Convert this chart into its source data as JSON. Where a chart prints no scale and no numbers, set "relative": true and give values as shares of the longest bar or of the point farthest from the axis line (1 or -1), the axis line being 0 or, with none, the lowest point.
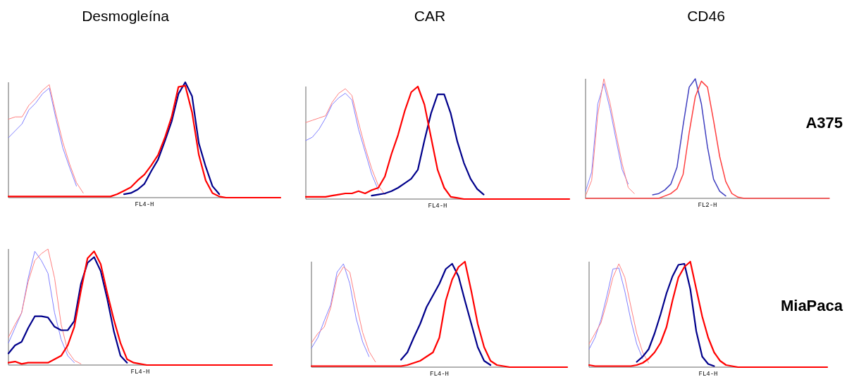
{
  "chart_data": [
    {
      "type": "line",
      "title": "Desmogleína",
      "xlabel": "FL4-H",
      "relative": true,
      "categories": [
        null,
        null,
        null,
        null,
        null,
        null,
        null,
        null,
        null,
        null,
        null,
        null,
        null,
        null,
        null,
        null,
        null,
        null,
        null,
        null,
        null,
        null,
        null,
        null,
        null,
        null,
        null,
        null,
        null,
        null,
        null,
        null,
        null,
        null,
        null,
        null,
        null,
        null,
        null,
        null,
        null
      ],
      "series": [
        {
          "color": "#8080ff",
          "values": [
            0.52,
            0.58,
            0.64,
            0.76,
            0.82,
            0.9,
            0.95,
            0.68,
            0.43,
            0.26,
            0.1,
            null,
            null,
            null,
            null,
            null,
            null,
            null,
            null,
            null,
            null,
            null,
            null,
            null,
            null,
            null,
            null,
            null,
            null,
            null,
            null,
            null,
            null,
            null,
            null,
            null,
            null,
            null,
            null,
            null,
            null
          ]
        },
        {
          "color": "#ff8080",
          "values": [
            0.68,
            0.7,
            0.7,
            0.8,
            0.86,
            0.93,
            0.98,
            0.72,
            0.48,
            0.29,
            0.13,
            0.04,
            null,
            null,
            null,
            null,
            null,
            null,
            null,
            null,
            null,
            null,
            null,
            null,
            null,
            null,
            null,
            null,
            null,
            null,
            null,
            null,
            null,
            null,
            null,
            null,
            null,
            null,
            null,
            null,
            null
          ]
        },
        {
          "color": "#00008b",
          "values": [
            null,
            null,
            null,
            null,
            null,
            null,
            null,
            null,
            null,
            null,
            null,
            null,
            null,
            null,
            null,
            null,
            null,
            0.03,
            0.04,
            0.07,
            0.12,
            0.23,
            0.33,
            0.49,
            0.66,
            0.9,
            1,
            0.88,
            0.47,
            0.27,
            0.1,
            0.03,
            null,
            null,
            null,
            null,
            null,
            null,
            null,
            null,
            null
          ]
        },
        {
          "color": "#ff0000",
          "values": [
            0.01,
            0.01,
            0.01,
            0.01,
            0.01,
            0.01,
            0.01,
            0.01,
            0.01,
            0.01,
            0.01,
            0.01,
            0.01,
            0.01,
            0.01,
            0.01,
            0.03,
            0.06,
            0.09,
            0.15,
            0.2,
            0.28,
            0.37,
            0.52,
            0.7,
            0.96,
            0.97,
            0.74,
            0.37,
            0.15,
            0.04,
            0.01,
            0,
            0,
            0,
            0,
            0,
            0,
            0,
            0,
            0
          ]
        }
      ]
    },
    {
      "type": "line",
      "title": "CAR",
      "xlabel": "FL4-H",
      "relative": true,
      "categories": [
        null,
        null,
        null,
        null,
        null,
        null,
        null,
        null,
        null,
        null,
        null,
        null,
        null,
        null,
        null,
        null,
        null,
        null,
        null,
        null,
        null,
        null,
        null,
        null,
        null,
        null,
        null,
        null,
        null,
        null,
        null,
        null,
        null,
        null,
        null,
        null,
        null,
        null,
        null,
        null,
        null
      ],
      "series": [
        {
          "color": "#8080ff",
          "values": [
            0.52,
            0.55,
            0.62,
            0.72,
            0.84,
            0.9,
            0.94,
            0.88,
            0.62,
            0.42,
            0.22,
            0.08,
            null,
            null,
            null,
            null,
            null,
            null,
            null,
            null,
            null,
            null,
            null,
            null,
            null,
            null,
            null,
            null,
            null,
            null,
            null,
            null,
            null,
            null,
            null,
            null,
            null,
            null,
            null,
            null,
            null
          ]
        },
        {
          "color": "#ff8080",
          "values": [
            0.68,
            0.7,
            0.72,
            0.74,
            0.86,
            0.94,
            0.98,
            0.92,
            0.68,
            0.46,
            0.27,
            0.12,
            0.04,
            null,
            null,
            null,
            null,
            null,
            null,
            null,
            null,
            null,
            null,
            null,
            null,
            null,
            null,
            null,
            null,
            null,
            null,
            null,
            null,
            null,
            null,
            null,
            null,
            null,
            null,
            null,
            null
          ]
        },
        {
          "color": "#00008b",
          "values": [
            null,
            null,
            null,
            null,
            null,
            null,
            null,
            null,
            null,
            null,
            0.03,
            0.04,
            0.05,
            0.07,
            0.1,
            0.14,
            0.18,
            0.26,
            0.52,
            0.76,
            0.93,
            0.93,
            0.76,
            0.51,
            0.32,
            0.18,
            0.09,
            0.04,
            null,
            null,
            null,
            null,
            null,
            null,
            null,
            null,
            null,
            null,
            null,
            null,
            null
          ]
        },
        {
          "color": "#ff0000",
          "values": [
            0.02,
            0.02,
            0.02,
            0.02,
            0.03,
            0.04,
            0.05,
            0.05,
            0.07,
            0.05,
            0.08,
            0.1,
            0.2,
            0.4,
            0.57,
            0.78,
            0.95,
            1,
            0.84,
            0.55,
            0.26,
            0.1,
            0.02,
            0.01,
            0,
            0,
            0,
            0,
            0,
            0,
            0,
            0,
            0,
            0,
            0,
            0,
            0,
            0,
            0,
            0,
            0
          ]
        }
      ]
    },
    {
      "type": "line",
      "title": "CD46",
      "xlabel": "FL2-H",
      "relative": true,
      "annotations": [
        "A375"
      ],
      "categories": [
        null,
        null,
        null,
        null,
        null,
        null,
        null,
        null,
        null,
        null,
        null,
        null,
        null,
        null,
        null,
        null,
        null,
        null,
        null,
        null,
        null,
        null,
        null,
        null,
        null,
        null,
        null,
        null,
        null,
        null,
        null,
        null,
        null,
        null,
        null,
        null,
        null,
        null,
        null,
        null,
        null
      ],
      "series": [
        {
          "color": "#8080ff",
          "values": [
            0.06,
            0.22,
            0.79,
            0.96,
            0.75,
            0.49,
            0.24,
            0.12,
            null,
            null,
            null,
            null,
            null,
            null,
            null,
            null,
            null,
            null,
            null,
            null,
            null,
            null,
            null,
            null,
            null,
            null,
            null,
            null,
            null,
            null,
            null,
            null,
            null,
            null,
            null,
            null,
            null,
            null,
            null,
            null,
            null
          ]
        },
        {
          "color": "#ff8080",
          "values": [
            0.02,
            0.15,
            0.7,
            1,
            0.8,
            0.54,
            0.29,
            0.09,
            0.04,
            null,
            null,
            null,
            null,
            null,
            null,
            null,
            null,
            null,
            null,
            null,
            null,
            null,
            null,
            null,
            null,
            null,
            null,
            null,
            null,
            null,
            null,
            null,
            null,
            null,
            null,
            null,
            null,
            null,
            null,
            null,
            null
          ]
        },
        {
          "color": "#4040c0",
          "values": [
            null,
            null,
            null,
            null,
            null,
            null,
            null,
            null,
            null,
            null,
            null,
            0.03,
            0.04,
            0.07,
            0.12,
            0.26,
            0.61,
            0.93,
            1,
            0.79,
            0.43,
            0.16,
            0.06,
            0.02,
            null,
            null,
            null,
            null,
            null,
            null,
            null,
            null,
            null,
            null,
            null,
            null,
            null,
            null,
            null,
            null,
            null
          ]
        },
        {
          "color": "#ff4040",
          "values": [
            0,
            0,
            0,
            0,
            0,
            0,
            0,
            0,
            0,
            0,
            0,
            0,
            0,
            0.02,
            0.04,
            0.08,
            0.2,
            0.55,
            0.85,
            0.98,
            0.93,
            0.65,
            0.35,
            0.14,
            0.04,
            0.01,
            0,
            0,
            0,
            0,
            0,
            0,
            0,
            0,
            0,
            0,
            0,
            0,
            0,
            0,
            0
          ]
        }
      ]
    },
    {
      "type": "line",
      "xlabel": "FL4-H",
      "relative": true,
      "categories": [
        null,
        null,
        null,
        null,
        null,
        null,
        null,
        null,
        null,
        null,
        null,
        null,
        null,
        null,
        null,
        null,
        null,
        null,
        null,
        null,
        null,
        null,
        null,
        null,
        null,
        null,
        null,
        null,
        null,
        null,
        null,
        null,
        null,
        null,
        null,
        null,
        null,
        null,
        null,
        null,
        null
      ],
      "series": [
        {
          "color": "#8080ff",
          "values": [
            0.19,
            0.32,
            0.45,
            0.75,
            0.98,
            0.9,
            0.79,
            0.45,
            0.22,
            0.08,
            0.02,
            null,
            null,
            null,
            null,
            null,
            null,
            null,
            null,
            null,
            null,
            null,
            null,
            null,
            null,
            null,
            null,
            null,
            null,
            null,
            null,
            null,
            null,
            null,
            null,
            null,
            null,
            null,
            null,
            null,
            null
          ]
        },
        {
          "color": "#ff8080",
          "values": [
            0.24,
            0.35,
            0.45,
            0.72,
            0.9,
            0.96,
            1,
            0.75,
            0.35,
            0.12,
            0.04,
            0.01,
            null,
            null,
            null,
            null,
            null,
            null,
            null,
            null,
            null,
            null,
            null,
            null,
            null,
            null,
            null,
            null,
            null,
            null,
            null,
            null,
            null,
            null,
            null,
            null,
            null,
            null,
            null,
            null,
            null
          ]
        },
        {
          "color": "#00008b",
          "values": [
            0.1,
            0.17,
            0.2,
            0.32,
            0.42,
            0.42,
            0.41,
            0.33,
            0.3,
            0.3,
            0.38,
            0.7,
            0.88,
            0.93,
            0.81,
            0.57,
            0.29,
            0.08,
            0.02,
            null,
            null,
            null,
            null,
            null,
            null,
            null,
            null,
            null,
            null,
            null,
            null,
            null,
            null,
            null,
            null,
            null,
            null,
            null,
            null,
            null,
            null
          ]
        },
        {
          "color": "#ff0000",
          "values": [
            0.02,
            0.03,
            0.01,
            0.02,
            0.02,
            0.02,
            0.02,
            0.05,
            0.08,
            0.17,
            0.33,
            0.64,
            0.92,
            0.98,
            0.87,
            0.62,
            0.39,
            0.19,
            0.05,
            0.02,
            0.01,
            0,
            0,
            0,
            0,
            0,
            0,
            0,
            0,
            0,
            0,
            0,
            0,
            0,
            0,
            0,
            0,
            0,
            0,
            0,
            0
          ]
        }
      ]
    },
    {
      "type": "line",
      "xlabel": "FL4-H",
      "relative": true,
      "categories": [
        null,
        null,
        null,
        null,
        null,
        null,
        null,
        null,
        null,
        null,
        null,
        null,
        null,
        null,
        null,
        null,
        null,
        null,
        null,
        null,
        null,
        null,
        null,
        null,
        null,
        null,
        null,
        null,
        null,
        null,
        null,
        null,
        null,
        null,
        null,
        null,
        null,
        null,
        null,
        null,
        null
      ],
      "series": [
        {
          "color": "#8080ff",
          "values": [
            0.18,
            0.28,
            0.44,
            0.59,
            0.9,
            0.98,
            0.79,
            0.46,
            0.24,
            0.1,
            null,
            null,
            null,
            null,
            null,
            null,
            null,
            null,
            null,
            null,
            null,
            null,
            null,
            null,
            null,
            null,
            null,
            null,
            null,
            null,
            null,
            null,
            null,
            null,
            null,
            null,
            null,
            null,
            null,
            null,
            null
          ]
        },
        {
          "color": "#ff8080",
          "values": [
            0.23,
            0.32,
            0.38,
            0.56,
            0.85,
            0.95,
            0.9,
            0.6,
            0.33,
            0.15,
            0.05,
            null,
            null,
            null,
            null,
            null,
            null,
            null,
            null,
            null,
            null,
            null,
            null,
            null,
            null,
            null,
            null,
            null,
            null,
            null,
            null,
            null,
            null,
            null,
            null,
            null,
            null,
            null,
            null,
            null,
            null
          ]
        },
        {
          "color": "#00008b",
          "values": [
            null,
            null,
            null,
            null,
            null,
            null,
            null,
            null,
            null,
            null,
            null,
            null,
            null,
            null,
            0.07,
            0.14,
            0.28,
            0.41,
            0.57,
            0.68,
            0.79,
            0.93,
            0.98,
            0.86,
            0.63,
            0.41,
            0.19,
            0.06,
            0.02,
            null,
            null,
            null,
            null,
            null,
            null,
            null,
            null,
            null,
            null,
            null,
            null
          ]
        },
        {
          "color": "#ff0000",
          "values": [
            0.01,
            0.01,
            0.01,
            0.01,
            0.01,
            0.01,
            0.01,
            0.01,
            0.01,
            0.01,
            0.01,
            0.01,
            0.01,
            0.01,
            0.01,
            0.02,
            0.04,
            0.06,
            0.1,
            0.14,
            0.28,
            0.63,
            0.83,
            0.95,
            1,
            0.72,
            0.41,
            0.19,
            0.06,
            0.02,
            0.01,
            0,
            0,
            0,
            0,
            0,
            0,
            0,
            0,
            0,
            0
          ]
        }
      ]
    },
    {
      "type": "line",
      "xlabel": "FL4-H",
      "relative": true,
      "annotations": [
        "MiaPaca"
      ],
      "categories": [
        null,
        null,
        null,
        null,
        null,
        null,
        null,
        null,
        null,
        null,
        null,
        null,
        null,
        null,
        null,
        null,
        null,
        null,
        null,
        null,
        null,
        null,
        null,
        null,
        null,
        null,
        null,
        null,
        null,
        null,
        null,
        null,
        null,
        null,
        null,
        null,
        null,
        null,
        null,
        null,
        null
      ],
      "series": [
        {
          "color": "#8080ff",
          "values": [
            0.17,
            0.28,
            0.45,
            0.68,
            0.93,
            0.94,
            0.72,
            0.45,
            0.22,
            0.08,
            null,
            null,
            null,
            null,
            null,
            null,
            null,
            null,
            null,
            null,
            null,
            null,
            null,
            null,
            null,
            null,
            null,
            null,
            null,
            null,
            null,
            null,
            null,
            null,
            null,
            null,
            null,
            null,
            null,
            null,
            null
          ]
        },
        {
          "color": "#ff8080",
          "values": [
            0.22,
            0.32,
            0.42,
            0.62,
            0.85,
            0.98,
            0.85,
            0.58,
            0.32,
            0.14,
            0.04,
            null,
            null,
            null,
            null,
            null,
            null,
            null,
            null,
            null,
            null,
            null,
            null,
            null,
            null,
            null,
            null,
            null,
            null,
            null,
            null,
            null,
            null,
            null,
            null,
            null,
            null,
            null,
            null,
            null,
            null
          ]
        },
        {
          "color": "#00008b",
          "values": [
            null,
            null,
            null,
            null,
            null,
            null,
            null,
            null,
            0.05,
            0.1,
            0.17,
            0.32,
            0.5,
            0.7,
            0.86,
            0.97,
            0.98,
            0.74,
            0.34,
            0.1,
            0.03,
            0.01,
            null,
            null,
            null,
            null,
            null,
            null,
            null,
            null,
            null,
            null,
            null,
            null,
            null,
            null,
            null,
            null,
            null,
            null,
            null
          ]
        },
        {
          "color": "#ff0000",
          "values": [
            0.02,
            0.01,
            0.01,
            0.01,
            0.01,
            0.01,
            0.01,
            0.01,
            0.02,
            0.04,
            0.08,
            0.14,
            0.23,
            0.38,
            0.63,
            0.85,
            0.95,
            1,
            0.74,
            0.48,
            0.28,
            0.14,
            0.06,
            0.02,
            0.01,
            0,
            0,
            0,
            0,
            0,
            0,
            0,
            0,
            0,
            0,
            0,
            0,
            0,
            0,
            0,
            0
          ]
        }
      ]
    }
  ]
}
